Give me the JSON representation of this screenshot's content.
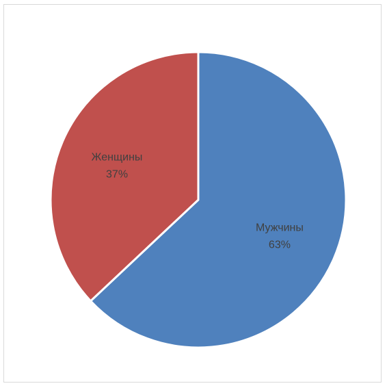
{
  "chart_data": {
    "type": "pie",
    "title": "",
    "legend": "none",
    "slices": [
      {
        "label": "Мужчины",
        "percent_label": "63%",
        "value": 63,
        "color": "#4f81bd"
      },
      {
        "label": "Женщины",
        "percent_label": "37%",
        "value": 37,
        "color": "#c0504d"
      }
    ],
    "slice_border_color": "#ffffff"
  }
}
